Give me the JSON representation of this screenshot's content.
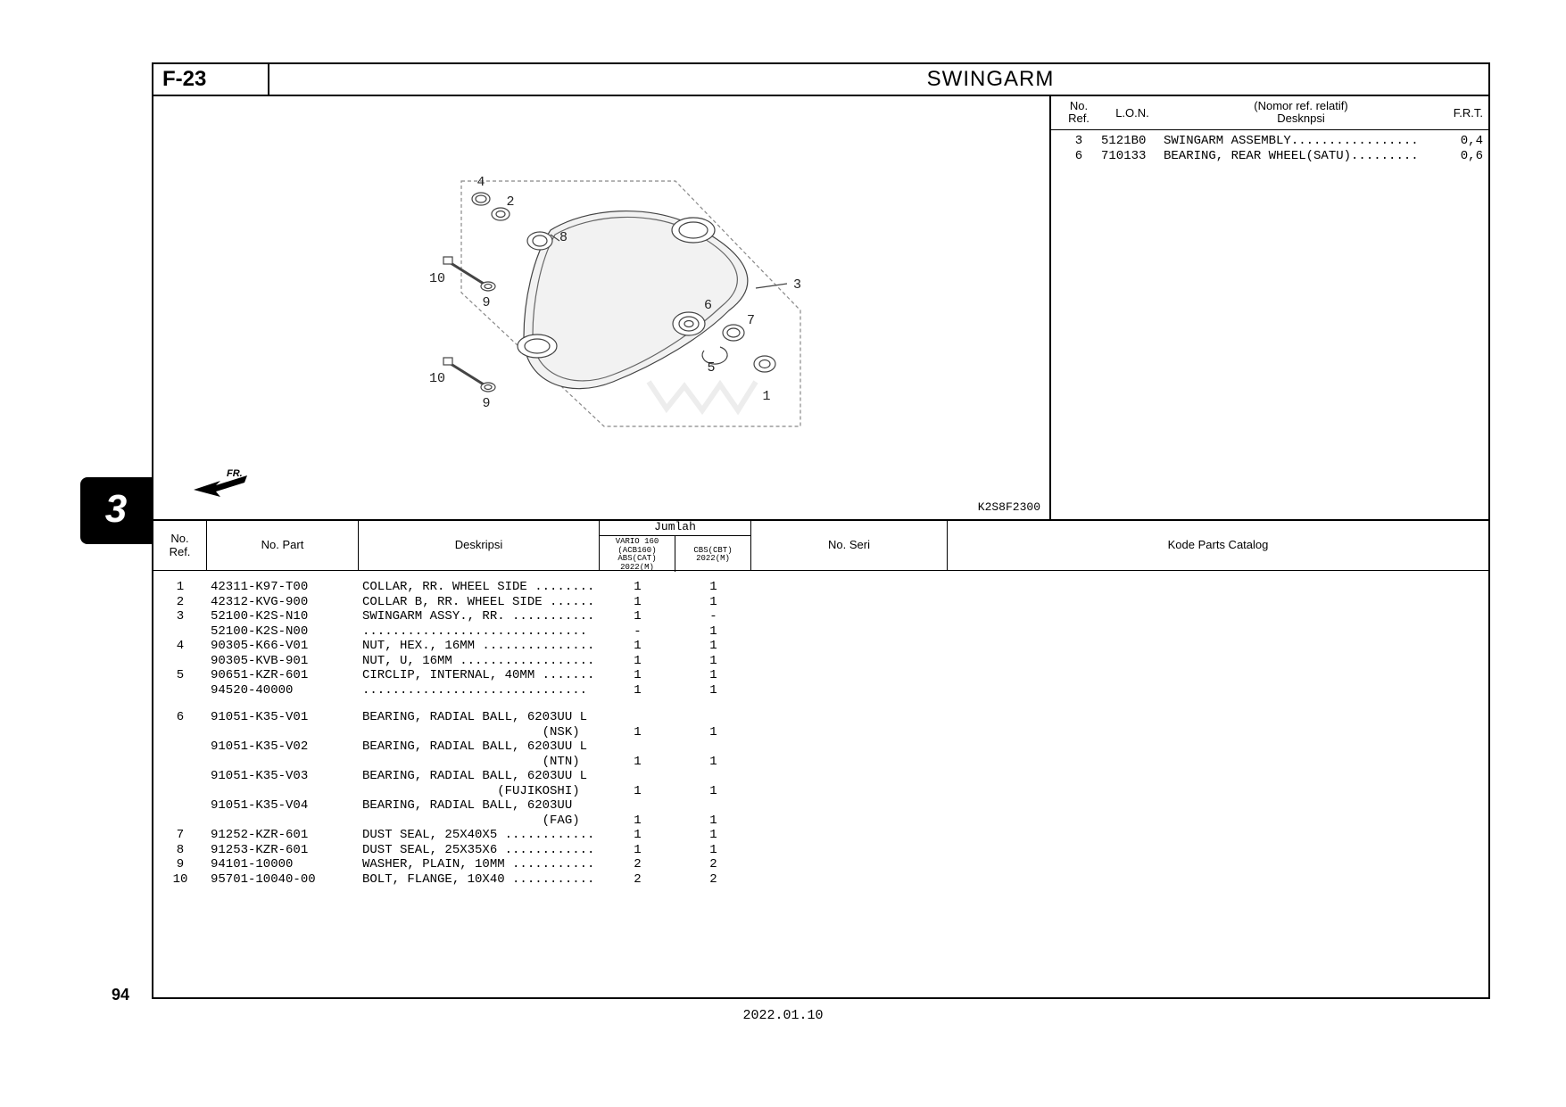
{
  "section_code": "F-23",
  "section_title": "SWINGARM",
  "diagram_code": "K2S8F2300",
  "fr_label": "FR.",
  "page_number": "94",
  "page_date": "2022.01.10",
  "tab_number": "3",
  "ref_panel": {
    "head": {
      "c1a": "No.",
      "c1b": "Ref.",
      "c2": "L.O.N.",
      "c3a": "(Nomor ref. relatif)",
      "c3b": "Desknpsi",
      "c4": "F.R.T."
    },
    "rows": [
      {
        "no": "3",
        "lon": "5121B0",
        "desc": "SWINGARM ASSEMBLY.................",
        "frt": "0,4"
      },
      {
        "no": "6",
        "lon": "710133",
        "desc": "BEARING, REAR WHEEL(SATU).........",
        "frt": "0,6"
      }
    ]
  },
  "table_head": {
    "no": "No.\nRef.",
    "part": "No. Part",
    "desc": "Deskripsi",
    "qty_top": "Jumlah",
    "qty_a1": "VARIO 160 (ACB160)",
    "qty_a2": "ABS(CAT)",
    "qty_a3": "2022(M)",
    "qty_b2": "CBS(CBT)",
    "qty_b3": "2022(M)",
    "seri": "No. Seri",
    "kode": "Kode Parts Catalog"
  },
  "parts": [
    {
      "no": "1",
      "part": "42311-K97-T00",
      "desc": "COLLAR, RR. WHEEL SIDE ........",
      "q1": "1",
      "q2": "1"
    },
    {
      "no": "2",
      "part": "42312-KVG-900",
      "desc": "COLLAR B, RR. WHEEL SIDE ......",
      "q1": "1",
      "q2": "1"
    },
    {
      "no": "3",
      "part": "52100-K2S-N10",
      "desc": "SWINGARM ASSY., RR. ...........",
      "q1": "1",
      "q2": "-"
    },
    {
      "no": "",
      "part": "52100-K2S-N00",
      "desc": "..............................",
      "q1": "-",
      "q2": "1"
    },
    {
      "no": "4",
      "part": "90305-K66-V01",
      "desc": "NUT, HEX., 16MM ...............",
      "q1": "1",
      "q2": "1"
    },
    {
      "no": "",
      "part": "90305-KVB-901",
      "desc": "NUT, U, 16MM ..................",
      "q1": "1",
      "q2": "1"
    },
    {
      "no": "5",
      "part": "90651-KZR-601",
      "desc": "CIRCLIP, INTERNAL, 40MM .......",
      "q1": "1",
      "q2": "1"
    },
    {
      "no": "",
      "part": "94520-40000",
      "desc": "..............................",
      "q1": "1",
      "q2": "1"
    }
  ],
  "parts2": [
    {
      "no": "6",
      "part": "91051-K35-V01",
      "desc": "BEARING, RADIAL BALL, 6203UU L",
      "q1": "",
      "q2": ""
    },
    {
      "no": "",
      "part": "",
      "desc": "                        (NSK)",
      "q1": "1",
      "q2": "1"
    },
    {
      "no": "",
      "part": "91051-K35-V02",
      "desc": "BEARING, RADIAL BALL, 6203UU L",
      "q1": "",
      "q2": ""
    },
    {
      "no": "",
      "part": "",
      "desc": "                        (NTN)",
      "q1": "1",
      "q2": "1"
    },
    {
      "no": "",
      "part": "91051-K35-V03",
      "desc": "BEARING, RADIAL BALL, 6203UU L",
      "q1": "",
      "q2": ""
    },
    {
      "no": "",
      "part": "",
      "desc": "                  (FUJIKOSHI)",
      "q1": "1",
      "q2": "1"
    },
    {
      "no": "",
      "part": "91051-K35-V04",
      "desc": "BEARING, RADIAL BALL, 6203UU",
      "q1": "",
      "q2": ""
    },
    {
      "no": "",
      "part": "",
      "desc": "                        (FAG)",
      "q1": "1",
      "q2": "1"
    },
    {
      "no": "7",
      "part": "91252-KZR-601",
      "desc": "DUST SEAL, 25X40X5 ............",
      "q1": "1",
      "q2": "1"
    },
    {
      "no": "8",
      "part": "91253-KZR-601",
      "desc": "DUST SEAL, 25X35X6 ............",
      "q1": "1",
      "q2": "1"
    },
    {
      "no": "9",
      "part": "94101-10000",
      "desc": "WASHER, PLAIN, 10MM ...........",
      "q1": "2",
      "q2": "2"
    },
    {
      "no": "10",
      "part": "95701-10040-00",
      "desc": "BOLT, FLANGE, 10X40 ...........",
      "q1": "2",
      "q2": "2"
    }
  ],
  "callouts": [
    "1",
    "2",
    "3",
    "4",
    "5",
    "6",
    "7",
    "8",
    "9",
    "10"
  ]
}
